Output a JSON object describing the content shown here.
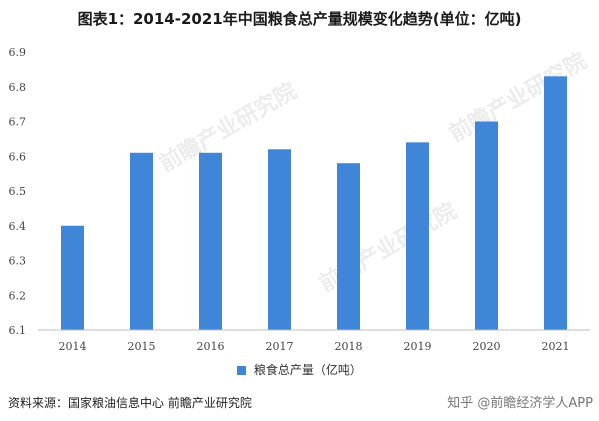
{
  "title": "图表1：2014-2021年中国粮食总产量规模变化趋势(单位：亿吨)",
  "legend": "粮食总产量（亿吨）",
  "source": "资料来源：国家粮油信息中心 前瞻产业研究院",
  "footer_mark": "知乎 @前瞻经济学人APP",
  "watermark": "前瞻产业研究院",
  "colors": {
    "bar": "#3f86d9",
    "axis": "#bfbfbf",
    "text": "#444444"
  },
  "chart_data": {
    "type": "bar",
    "categories": [
      "2014",
      "2015",
      "2016",
      "2017",
      "2018",
      "2019",
      "2020",
      "2021"
    ],
    "series": [
      {
        "name": "粮食总产量（亿吨）",
        "values": [
          6.4,
          6.61,
          6.61,
          6.62,
          6.58,
          6.64,
          6.7,
          6.83
        ]
      }
    ],
    "ylim": [
      6.1,
      6.9
    ],
    "yticks": [
      "6.1",
      "6.2",
      "6.3",
      "6.4",
      "6.5",
      "6.6",
      "6.7",
      "6.8",
      "6.9"
    ],
    "grid": false,
    "legend_position": "bottom"
  }
}
